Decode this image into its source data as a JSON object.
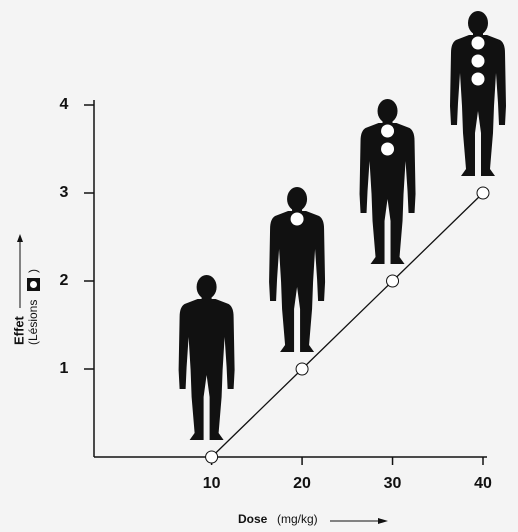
{
  "chart_data": {
    "type": "line",
    "x": [
      10,
      20,
      30,
      40
    ],
    "values": [
      0,
      1,
      2,
      3
    ],
    "xlim": [
      -3,
      40
    ],
    "xticks": [
      10,
      20,
      30,
      40
    ],
    "ylim": [
      0,
      4
    ],
    "yticks": [
      1,
      2,
      3,
      4
    ],
    "x_label": "Dose",
    "x_label_unit": "(mg/kg)",
    "y_label": "Effet",
    "y_label_note_open": "(Lésions",
    "y_label_note_close": ")",
    "color": "#111111"
  }
}
